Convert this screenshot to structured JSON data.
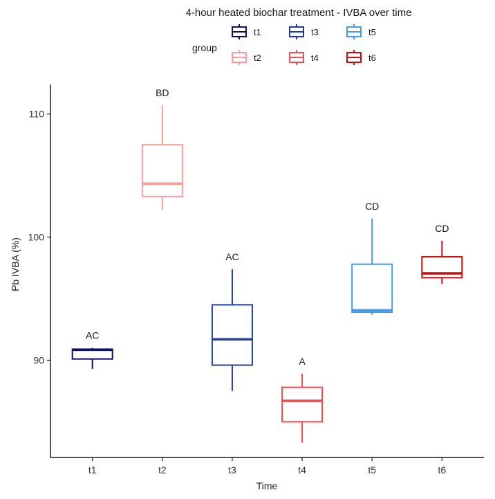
{
  "chart_data": {
    "type": "boxplot",
    "title": "4-hour heated biochar treatment - IVBA over time",
    "xlabel": "Time",
    "ylabel": "Pb IVBA (%)",
    "categories": [
      "t1",
      "t2",
      "t3",
      "t4",
      "t5",
      "t6"
    ],
    "yticks": [
      90,
      100,
      110
    ],
    "ylim": [
      82.1,
      112.4
    ],
    "grid": false,
    "legend": {
      "title": "group",
      "position": "top",
      "entries": [
        {
          "label": "t1",
          "color": "#0d0d6b"
        },
        {
          "label": "t3",
          "color": "#1e3f9e"
        },
        {
          "label": "t5",
          "color": "#3d9bf0"
        },
        {
          "label": "t2",
          "color": "#ff9999"
        },
        {
          "label": "t4",
          "color": "#f04a4f"
        },
        {
          "label": "t6",
          "color": "#cc0a0a"
        }
      ]
    },
    "boxes": [
      {
        "group": "t1",
        "color": "#0d0d6b",
        "whisker_low": 89.3,
        "q1": 90.1,
        "median": 90.85,
        "q3": 90.9,
        "whisker_high": 91.0,
        "label": "AC"
      },
      {
        "group": "t2",
        "color": "#ff9999",
        "whisker_low": 102.2,
        "q1": 103.3,
        "median": 104.35,
        "q3": 107.5,
        "whisker_high": 110.7,
        "label": "BD"
      },
      {
        "group": "t3",
        "color": "#1e3f9e",
        "whisker_low": 87.5,
        "q1": 89.6,
        "median": 91.7,
        "q3": 94.5,
        "whisker_high": 97.4,
        "label": "AC"
      },
      {
        "group": "t4",
        "color": "#f04a4f",
        "whisker_low": 83.3,
        "q1": 85.0,
        "median": 86.7,
        "q3": 87.8,
        "whisker_high": 88.9,
        "label": "A"
      },
      {
        "group": "t5",
        "color": "#3d9bf0",
        "whisker_low": 93.7,
        "q1": 93.9,
        "median": 94.05,
        "q3": 97.8,
        "whisker_high": 101.5,
        "label": "CD"
      },
      {
        "group": "t6",
        "color": "#cc0a0a",
        "whisker_low": 96.2,
        "q1": 96.7,
        "median": 97.05,
        "q3": 98.4,
        "whisker_high": 99.7,
        "label": "CD"
      }
    ]
  }
}
